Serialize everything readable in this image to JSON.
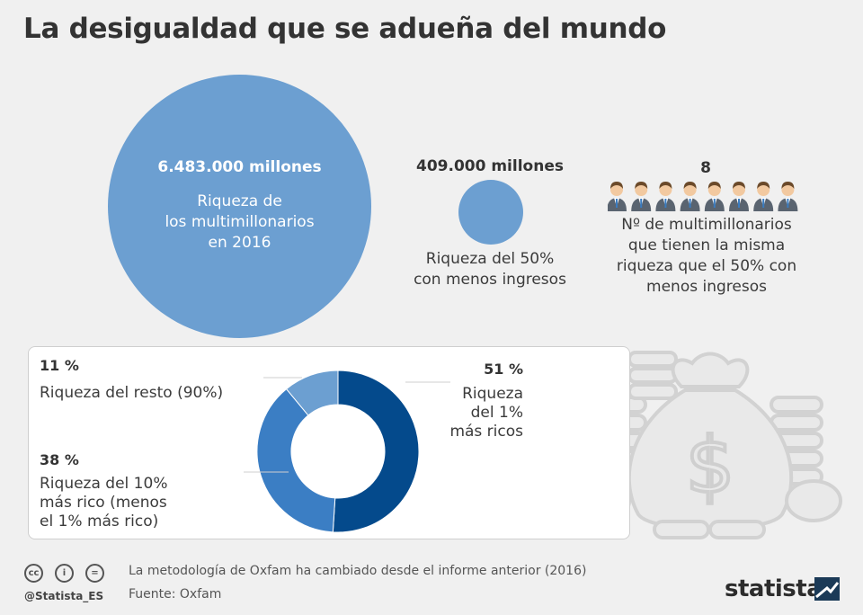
{
  "title": "La desigualdad que se adueña del mundo",
  "billionaires_wealth": {
    "value": "6.483.000 millones",
    "label_lines": [
      "Riqueza de",
      "los multimillonarios",
      "en 2016"
    ]
  },
  "poorest_half_wealth": {
    "value": "409.000 millones",
    "label_lines": [
      "Riqueza del 50%",
      "con menos ingresos"
    ]
  },
  "billionaire_count": {
    "value": "8",
    "people_icons": 8,
    "label_lines": [
      "Nº de multimillonarios",
      "que tienen la misma",
      "riqueza que el 50% con",
      "menos ingresos"
    ]
  },
  "chart_data": {
    "type": "pie",
    "variant": "donut",
    "categories": [
      "Riqueza del 1% más ricos",
      "Riqueza del 10% más rico (menos el 1% más rico)",
      "Riqueza del resto (90%)"
    ],
    "values": [
      51,
      38,
      11
    ],
    "unit": "%",
    "colors": [
      "#044a8c",
      "#3b7ec4",
      "#6c9fd1"
    ]
  },
  "donut_labels": {
    "top1": {
      "pct": "51 %",
      "lines": [
        "Riqueza",
        "del 1%",
        "más ricos"
      ]
    },
    "top10": {
      "pct": "38 %",
      "lines": [
        "Riqueza del 10%",
        "más rico (menos",
        "el 1% más rico)"
      ]
    },
    "rest": {
      "pct": "11 %",
      "lines": [
        "Riqueza del resto (90%)"
      ]
    }
  },
  "footer": {
    "note": "La metodología de Oxfam ha cambiado desde el informe anterior (2016)",
    "source": "Fuente: Oxfam",
    "handle": "@Statista_ES",
    "brand": "statista",
    "license_icons": [
      "cc-icon",
      "by-icon",
      "nd-icon"
    ]
  },
  "colors": {
    "background": "#f0f0f0",
    "circle": "#6c9fd1",
    "dark_blue": "#044a8c",
    "mid_blue": "#3b7ec4"
  }
}
